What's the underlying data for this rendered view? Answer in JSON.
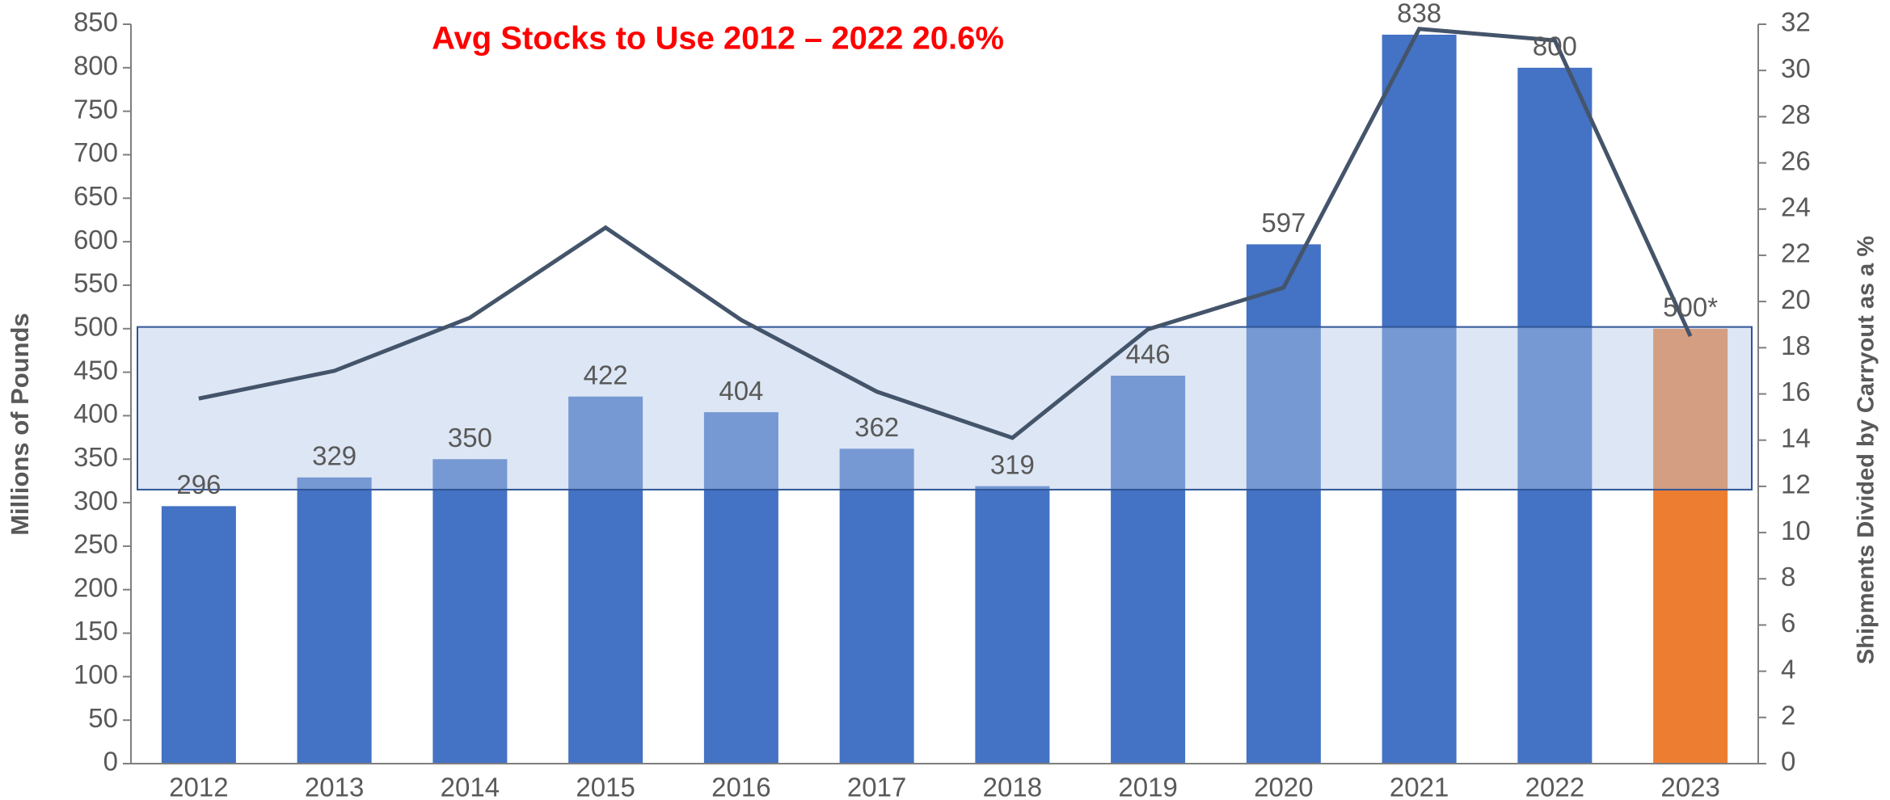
{
  "chart_data": {
    "type": "bar",
    "title": "Avg Stocks to Use 2012 – 2022 20.6%",
    "y_label": "Millions of Pounds",
    "y2_label": "Shipments Divided by Carryout as a %",
    "categories": [
      "2012",
      "2013",
      "2014",
      "2015",
      "2016",
      "2017",
      "2018",
      "2019",
      "2020",
      "2021",
      "2022",
      "2023"
    ],
    "series": [
      {
        "type": "bar",
        "colors": [
          "#4472c4",
          "#4472c4",
          "#4472c4",
          "#4472c4",
          "#4472c4",
          "#4472c4",
          "#4472c4",
          "#4472c4",
          "#4472c4",
          "#4472c4",
          "#4472c4",
          "#ed7d31"
        ],
        "values": [
          296,
          329,
          350,
          422,
          404,
          362,
          319,
          446,
          597,
          838,
          800,
          500
        ],
        "value_labels": [
          "296",
          "329",
          "350",
          "422",
          "404",
          "362",
          "319",
          "446",
          "597",
          "838",
          "800",
          "500*"
        ]
      },
      {
        "type": "line",
        "axis": "y2",
        "color": "#44546a",
        "values": [
          15.8,
          17.0,
          19.3,
          23.2,
          19.2,
          16.1,
          14.1,
          18.8,
          20.6,
          31.8,
          31.3,
          18.5
        ]
      }
    ],
    "highlight_range": [
      315,
      502
    ],
    "ylim": [
      0,
      850
    ],
    "yticks": [
      0,
      50,
      100,
      150,
      200,
      250,
      300,
      350,
      400,
      450,
      500,
      550,
      600,
      650,
      700,
      750,
      800,
      850
    ],
    "y2lim": [
      0,
      32
    ],
    "y2ticks": [
      0,
      2,
      4,
      6,
      8,
      10,
      12,
      14,
      16,
      18,
      20,
      22,
      24,
      26,
      28,
      30,
      32
    ]
  }
}
